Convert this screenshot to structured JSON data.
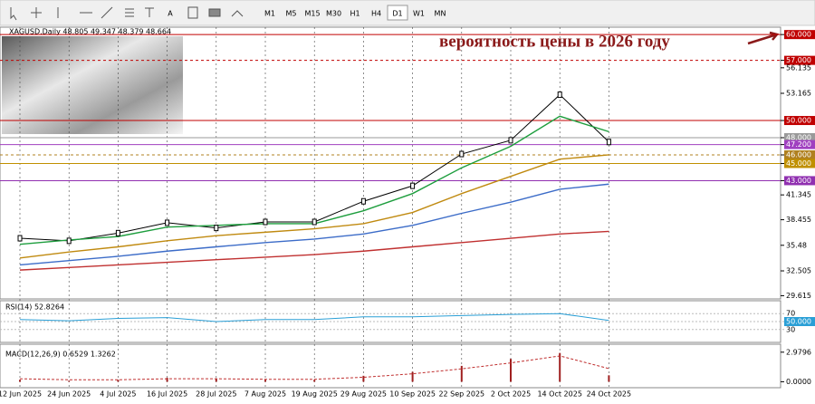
{
  "toolbar": {
    "timeframes": [
      "M1",
      "M5",
      "M15",
      "M30",
      "H1",
      "H4",
      "D1",
      "W1",
      "MN"
    ],
    "active_index": 6,
    "tools": [
      "A"
    ]
  },
  "chart": {
    "header": "XAGUSD,Daily  48.805 49.347 48.379 48.664",
    "annotation": "вероятность цены в 2026 году",
    "ylim": [
      29.24,
      60.86
    ],
    "yticks": [
      {
        "value": 60,
        "label": "60.000"
      },
      {
        "value": 57,
        "label": "57.000"
      },
      56.135,
      53.165,
      {
        "value": 50,
        "label": "50.000"
      },
      {
        "value": 48,
        "label": "48.000"
      },
      {
        "value": 47.2,
        "label": "47.200"
      },
      {
        "value": 46,
        "label": "46.000"
      },
      {
        "value": 45,
        "label": "45.000"
      },
      {
        "value": 43,
        "label": "43.000"
      },
      41.345,
      38.455,
      35.48,
      32.505,
      29.615
    ],
    "levels": [
      {
        "value": 60,
        "color": "#c00000",
        "dash": false
      },
      {
        "value": 57,
        "color": "#c00000",
        "dash": true
      },
      {
        "value": 50,
        "color": "#c00000",
        "dash": false
      },
      {
        "value": 48,
        "color": "#9a9a9a",
        "dash": false
      },
      {
        "value": 47.2,
        "color": "#a040c0",
        "dash": false
      },
      {
        "value": 46,
        "color": "#b08020",
        "dash": true
      },
      {
        "value": 45,
        "color": "#c09000",
        "dash": false
      },
      {
        "value": 43,
        "color": "#9030b0",
        "dash": false
      }
    ],
    "x": [
      "12 Jun 2025",
      "24 Jun 2025",
      "4 Jul 2025",
      "16 Jul 2025",
      "28 Jul 2025",
      "7 Aug 2025",
      "19 Aug 2025",
      "29 Aug 2025",
      "10 Sep 2025",
      "22 Sep 2025",
      "2 Oct 2025",
      "14 Oct 2025",
      "24 Oct 2025"
    ],
    "series": [
      {
        "color": "#000000",
        "values": [
          36.3,
          36.0,
          36.9,
          38.1,
          37.5,
          38.2,
          38.2,
          40.6,
          42.4,
          46.1,
          47.7,
          53.0,
          47.5
        ]
      },
      {
        "color": "#1e9e3e",
        "values": [
          35.6,
          36.1,
          36.5,
          37.6,
          37.8,
          38.0,
          38.0,
          39.5,
          41.5,
          44.5,
          47.0,
          50.5,
          48.7
        ]
      },
      {
        "color": "#c08a10",
        "values": [
          34.0,
          34.7,
          35.3,
          36.0,
          36.6,
          37.0,
          37.4,
          38.0,
          39.3,
          41.5,
          43.5,
          45.5,
          46.0
        ]
      },
      {
        "color": "#3c6cc8",
        "values": [
          33.2,
          33.7,
          34.2,
          34.8,
          35.3,
          35.8,
          36.2,
          36.8,
          37.8,
          39.2,
          40.5,
          42.0,
          42.6
        ]
      },
      {
        "color": "#c03030",
        "values": [
          32.6,
          32.9,
          33.2,
          33.5,
          33.8,
          34.1,
          34.4,
          34.8,
          35.3,
          35.8,
          36.3,
          36.8,
          37.1
        ]
      }
    ]
  },
  "rsi": {
    "label": "RSI(14) 52.8264",
    "ylim": [
      0,
      100
    ],
    "yticks": [
      70,
      {
        "value": 50,
        "label": "50.000"
      },
      30
    ],
    "color": "#2a9fd6",
    "values": [
      55,
      52,
      58,
      60,
      50,
      55,
      55,
      62,
      62,
      65,
      68,
      70,
      52.8
    ]
  },
  "macd": {
    "label": "MACD(12,26,9) 0.6529 1.3262",
    "ylim": [
      -0.6,
      3.6
    ],
    "yticks": [
      2.9796,
      {
        "value": 0,
        "label": "0.0000"
      }
    ],
    "histogram": [
      0.2,
      0.1,
      0.2,
      0.4,
      0.3,
      0.2,
      0.2,
      0.6,
      1.0,
      1.6,
      2.3,
      2.9,
      0.65
    ],
    "signal": [
      0.3,
      0.2,
      0.2,
      0.3,
      0.3,
      0.25,
      0.25,
      0.45,
      0.8,
      1.3,
      1.9,
      2.6,
      1.33
    ]
  }
}
